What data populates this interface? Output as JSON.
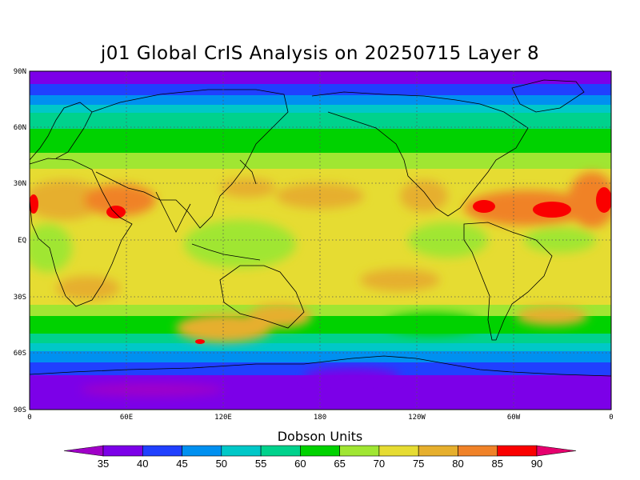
{
  "title": "j01 Global CrIS Analysis on 20250715 Layer 8",
  "axes": {
    "lat_labels": [
      "90N",
      "60N",
      "30N",
      "EQ",
      "30S",
      "60S",
      "90S"
    ],
    "lon_labels": [
      "0",
      "60E",
      "120E",
      "180",
      "120W",
      "60W",
      "0"
    ]
  },
  "colorbar": {
    "title": "Dobson Units",
    "levels": [
      "35",
      "40",
      "45",
      "50",
      "55",
      "60",
      "65",
      "70",
      "75",
      "80",
      "85",
      "90"
    ],
    "colors": [
      "#a000c8",
      "#7c00e8",
      "#2040ff",
      "#0090f0",
      "#00c8c8",
      "#00d28c",
      "#00d200",
      "#a0e632",
      "#e6dc32",
      "#e6af2d",
      "#f08228",
      "#fa0000",
      "#e6006e"
    ]
  },
  "map": {
    "variable": "ozone column (Dobson Units)",
    "grid": "dotted",
    "features": [
      "coastlines"
    ]
  }
}
